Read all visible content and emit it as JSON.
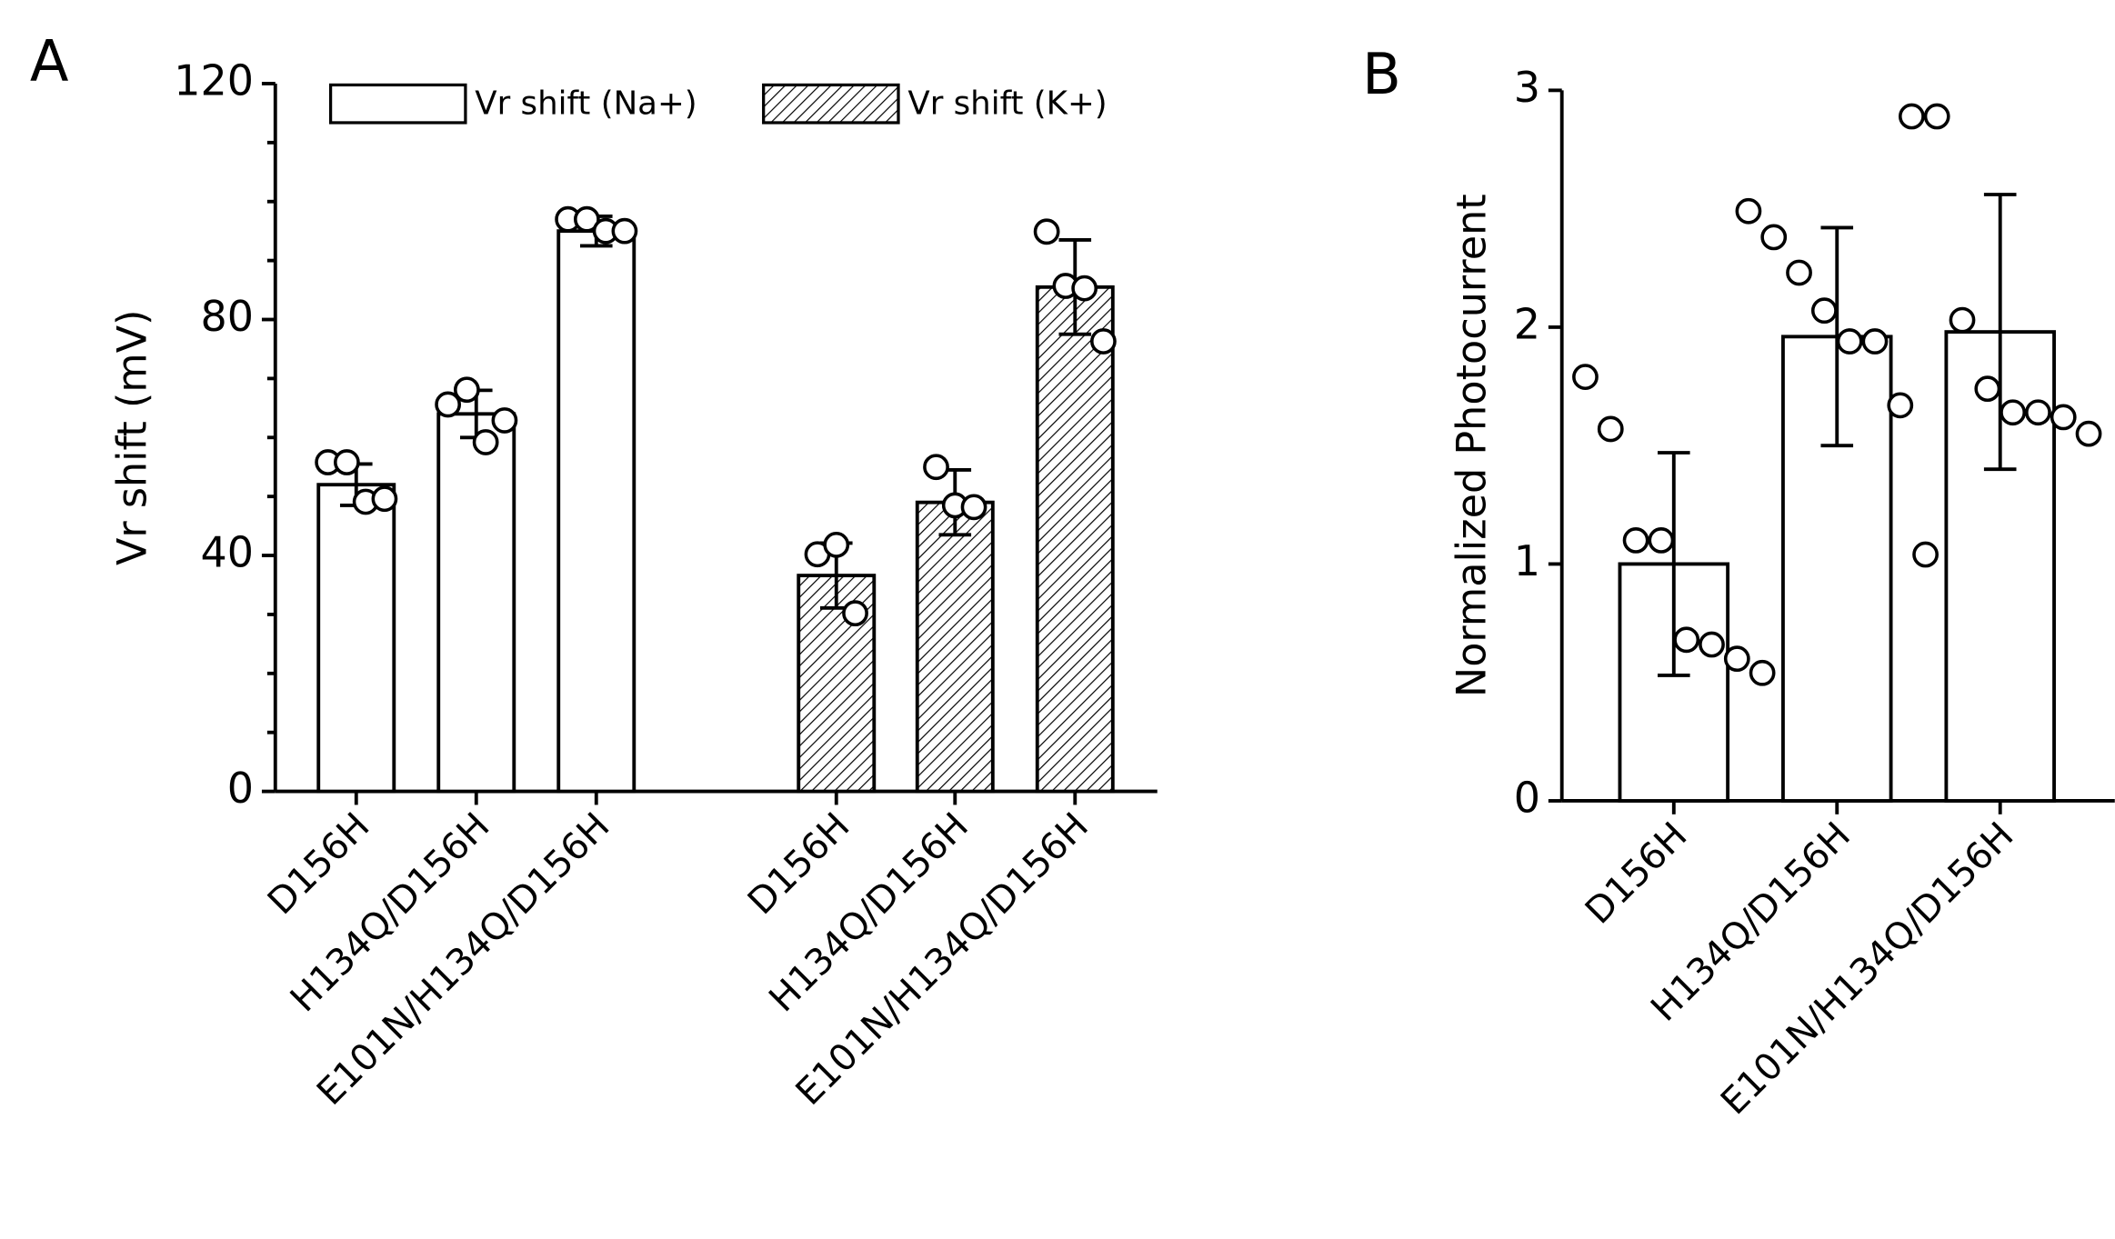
{
  "chart_data": [
    {
      "type": "bar",
      "panel_label": "A",
      "ylabel": "Vr shift (mV)",
      "categories": [
        "D156H",
        "H134Q/D156H",
        "E101N/H134Q/D156H",
        "D156H",
        "H134Q/D156H",
        "E101N/H134Q/D156H"
      ],
      "series": [
        {
          "name": "Vr shift (Na+)",
          "color": "#ffffff",
          "pattern": "none",
          "values": [
            52,
            64,
            95,
            null,
            null,
            null
          ],
          "errors": [
            3.5,
            4,
            2.5,
            null,
            null,
            null
          ],
          "points": [
            [
              55.8,
              55.8,
              49.1,
              49.6
            ],
            [
              65.6,
              68.1,
              59.2,
              62.9
            ],
            [
              97,
              97,
              95,
              95
            ],
            null,
            null,
            null
          ]
        },
        {
          "name": "Vr shift (K+)",
          "color": "#ffffff",
          "pattern": "hatch",
          "values": [
            null,
            null,
            null,
            36.6,
            49,
            85.5
          ],
          "errors": [
            null,
            null,
            null,
            5.5,
            5.5,
            8
          ],
          "points": [
            null,
            null,
            null,
            [
              40.2,
              41.8,
              30.2
            ],
            [
              55,
              48.5,
              48.2
            ],
            [
              94.9,
              85.7,
              85.3,
              76.3
            ]
          ]
        }
      ],
      "ylim": [
        0,
        120
      ],
      "yticks": [
        0,
        40,
        80,
        120
      ],
      "minor_yticks": [
        10,
        20,
        30,
        50,
        60,
        70,
        90,
        100,
        110
      ],
      "legend": "top"
    },
    {
      "type": "bar",
      "panel_label": "B",
      "ylabel": "Normalized Photocurrent",
      "categories": [
        "D156H",
        "H134Q/D156H",
        "E101N/H134Q/D156H"
      ],
      "series": [
        {
          "color": "#ffffff",
          "pattern": "none",
          "values": [
            1.0,
            1.96,
            1.98
          ],
          "errors": [
            0.47,
            0.46,
            0.58
          ],
          "points": [
            [
              1.79,
              1.57,
              1.1,
              1.1,
              0.68,
              0.66,
              0.6,
              0.54
            ],
            [
              2.49,
              2.38,
              2.23,
              2.07,
              1.94,
              1.94,
              1.67,
              1.04
            ],
            [
              2.89,
              2.89,
              2.03,
              1.74,
              1.64,
              1.64,
              1.62,
              1.55
            ]
          ]
        }
      ],
      "ylim": [
        0,
        3
      ],
      "yticks": [
        0,
        1,
        2,
        3
      ]
    }
  ]
}
